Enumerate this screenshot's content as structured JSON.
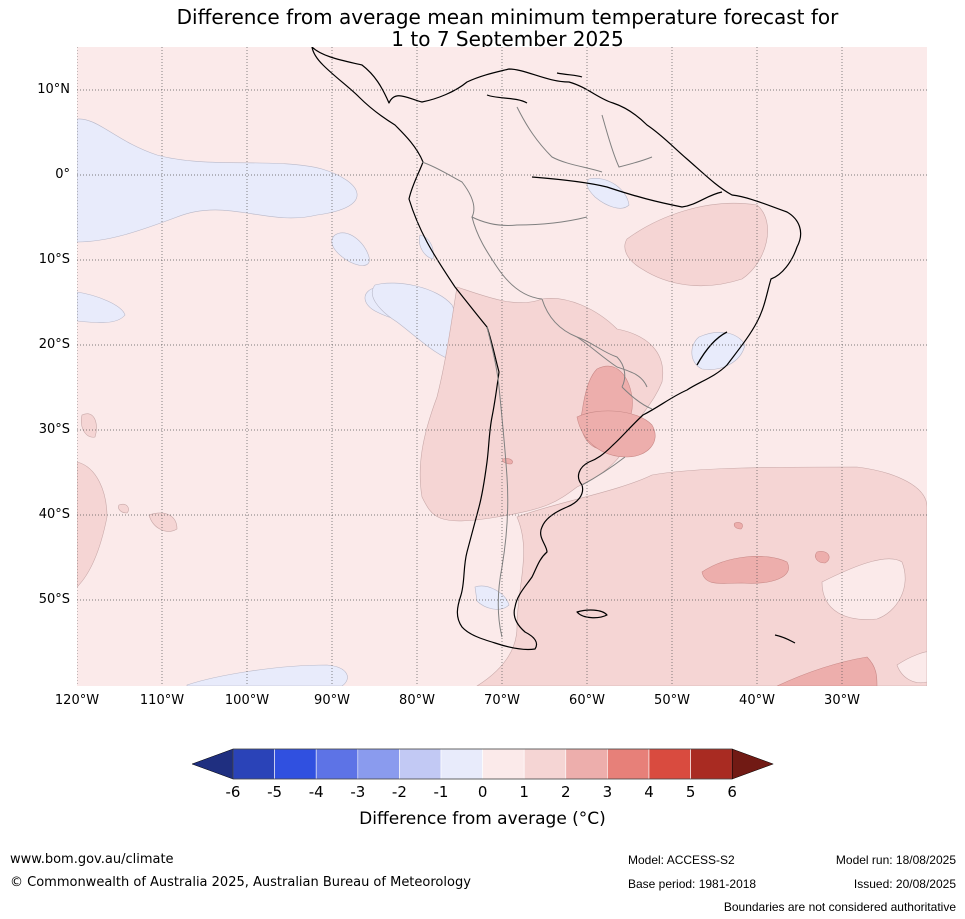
{
  "title_line1": "Difference from average mean minimum temperature forecast for",
  "title_line2": "1 to 7 September 2025",
  "lat_labels": [
    "10°N",
    "0°",
    "10°S",
    "20°S",
    "30°S",
    "40°S",
    "50°S"
  ],
  "lon_labels": [
    "120°W",
    "110°W",
    "100°W",
    "90°W",
    "80°W",
    "70°W",
    "60°W",
    "50°W",
    "40°W",
    "30°W"
  ],
  "colorbar": {
    "ticks": [
      "-6",
      "-5",
      "-4",
      "-3",
      "-2",
      "-1",
      "0",
      "1",
      "2",
      "3",
      "4",
      "5",
      "6"
    ],
    "colors": [
      "#1f2f80",
      "#2a43b8",
      "#3050e0",
      "#5d73e6",
      "#8a9bee",
      "#c2c9f4",
      "#e8ebfb",
      "#fbeaea",
      "#f5d5d4",
      "#edaeac",
      "#e78079",
      "#d94b3f",
      "#a92b22",
      "#711a14"
    ],
    "label": "Difference from average ($^\\circ$C)",
    "label_display": "Difference from average (°C)"
  },
  "footer": {
    "website": "www.bom.gov.au/climate",
    "copyright": "© Commonwealth of Australia 2025, Australian Bureau of Meteorology",
    "model": "Model: ACCESS-S2",
    "base_period": "Base period: 1981-2018",
    "model_run": "Model run: 18/08/2025",
    "issued": "Issued: 20/08/2025",
    "disclaimer": "Boundaries are not considered authoritative"
  }
}
